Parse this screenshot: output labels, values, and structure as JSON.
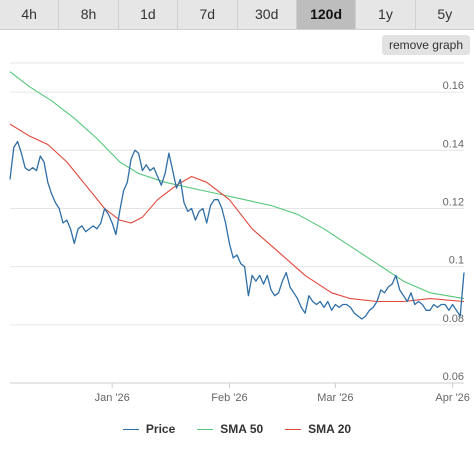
{
  "tabs": [
    {
      "label": "4h",
      "active": false
    },
    {
      "label": "8h",
      "active": false
    },
    {
      "label": "1d",
      "active": false
    },
    {
      "label": "7d",
      "active": false
    },
    {
      "label": "30d",
      "active": false
    },
    {
      "label": "120d",
      "active": true
    },
    {
      "label": "1y",
      "active": false
    },
    {
      "label": "5y",
      "active": false
    }
  ],
  "remove_button": "remove graph",
  "chart_data": {
    "type": "line",
    "title": "",
    "xlabel": "",
    "ylabel": "",
    "ylim": [
      0.06,
      0.17
    ],
    "yticks": [
      0.06,
      0.08,
      0.1,
      0.12,
      0.14,
      0.16
    ],
    "ytick_labels": [
      "0.06",
      "0.08",
      "0.1",
      "0.12",
      "0.14",
      "0.16"
    ],
    "xlim": [
      "2025-12-05",
      "2026-04-04"
    ],
    "xticks": [
      "2026-01-01",
      "2026-02-01",
      "2026-03-01",
      "2026-04-01"
    ],
    "xtick_labels": [
      "Jan '26",
      "Feb '26",
      "Mar '26",
      "Apr '26"
    ],
    "grid": "horizontal",
    "legend_position": "bottom",
    "series": [
      {
        "name": "Price",
        "color": "#2f6fa6",
        "points": [
          [
            "2025-12-05",
            0.13
          ],
          [
            "2025-12-06",
            0.141
          ],
          [
            "2025-12-07",
            0.143
          ],
          [
            "2025-12-08",
            0.139
          ],
          [
            "2025-12-09",
            0.134
          ],
          [
            "2025-12-10",
            0.133
          ],
          [
            "2025-12-11",
            0.134
          ],
          [
            "2025-12-12",
            0.133
          ],
          [
            "2025-12-13",
            0.138
          ],
          [
            "2025-12-14",
            0.136
          ],
          [
            "2025-12-15",
            0.129
          ],
          [
            "2025-12-16",
            0.125
          ],
          [
            "2025-12-17",
            0.122
          ],
          [
            "2025-12-18",
            0.12
          ],
          [
            "2025-12-19",
            0.115
          ],
          [
            "2025-12-20",
            0.116
          ],
          [
            "2025-12-21",
            0.113
          ],
          [
            "2025-12-22",
            0.108
          ],
          [
            "2025-12-23",
            0.113
          ],
          [
            "2025-12-24",
            0.114
          ],
          [
            "2025-12-25",
            0.112
          ],
          [
            "2025-12-26",
            0.113
          ],
          [
            "2025-12-27",
            0.114
          ],
          [
            "2025-12-28",
            0.113
          ],
          [
            "2025-12-29",
            0.115
          ],
          [
            "2025-12-30",
            0.12
          ],
          [
            "2025-12-31",
            0.118
          ],
          [
            "2026-01-01",
            0.115
          ],
          [
            "2026-01-02",
            0.111
          ],
          [
            "2026-01-03",
            0.119
          ],
          [
            "2026-01-04",
            0.126
          ],
          [
            "2026-01-05",
            0.129
          ],
          [
            "2026-01-06",
            0.137
          ],
          [
            "2026-01-07",
            0.14
          ],
          [
            "2026-01-08",
            0.139
          ],
          [
            "2026-01-09",
            0.133
          ],
          [
            "2026-01-10",
            0.135
          ],
          [
            "2026-01-11",
            0.133
          ],
          [
            "2026-01-12",
            0.134
          ],
          [
            "2026-01-13",
            0.131
          ],
          [
            "2026-01-14",
            0.128
          ],
          [
            "2026-01-15",
            0.132
          ],
          [
            "2026-01-16",
            0.139
          ],
          [
            "2026-01-17",
            0.133
          ],
          [
            "2026-01-18",
            0.127
          ],
          [
            "2026-01-19",
            0.13
          ],
          [
            "2026-01-20",
            0.122
          ],
          [
            "2026-01-21",
            0.119
          ],
          [
            "2026-01-22",
            0.12
          ],
          [
            "2026-01-23",
            0.116
          ],
          [
            "2026-01-24",
            0.119
          ],
          [
            "2026-01-25",
            0.12
          ],
          [
            "2026-01-26",
            0.115
          ],
          [
            "2026-01-27",
            0.121
          ],
          [
            "2026-01-28",
            0.123
          ],
          [
            "2026-01-29",
            0.123
          ],
          [
            "2026-01-30",
            0.12
          ],
          [
            "2026-01-31",
            0.115
          ],
          [
            "2026-02-01",
            0.108
          ],
          [
            "2026-02-02",
            0.103
          ],
          [
            "2026-02-03",
            0.104
          ],
          [
            "2026-02-04",
            0.101
          ],
          [
            "2026-02-05",
            0.1
          ],
          [
            "2026-02-06",
            0.09
          ],
          [
            "2026-02-07",
            0.097
          ],
          [
            "2026-02-08",
            0.095
          ],
          [
            "2026-02-09",
            0.097
          ],
          [
            "2026-02-10",
            0.094
          ],
          [
            "2026-02-11",
            0.097
          ],
          [
            "2026-02-12",
            0.092
          ],
          [
            "2026-02-13",
            0.09
          ],
          [
            "2026-02-14",
            0.091
          ],
          [
            "2026-02-15",
            0.095
          ],
          [
            "2026-02-16",
            0.098
          ],
          [
            "2026-02-17",
            0.093
          ],
          [
            "2026-02-18",
            0.091
          ],
          [
            "2026-02-19",
            0.089
          ],
          [
            "2026-02-20",
            0.086
          ],
          [
            "2026-02-21",
            0.084
          ],
          [
            "2026-02-22",
            0.09
          ],
          [
            "2026-02-23",
            0.088
          ],
          [
            "2026-02-24",
            0.087
          ],
          [
            "2026-02-25",
            0.088
          ],
          [
            "2026-02-26",
            0.086
          ],
          [
            "2026-02-27",
            0.088
          ],
          [
            "2026-02-28",
            0.085
          ],
          [
            "2026-03-01",
            0.087
          ],
          [
            "2026-03-02",
            0.086
          ],
          [
            "2026-03-03",
            0.087
          ],
          [
            "2026-03-04",
            0.087
          ],
          [
            "2026-03-05",
            0.086
          ],
          [
            "2026-03-06",
            0.084
          ],
          [
            "2026-03-07",
            0.083
          ],
          [
            "2026-03-08",
            0.082
          ],
          [
            "2026-03-09",
            0.083
          ],
          [
            "2026-03-10",
            0.085
          ],
          [
            "2026-03-11",
            0.086
          ],
          [
            "2026-03-12",
            0.088
          ],
          [
            "2026-03-13",
            0.092
          ],
          [
            "2026-03-14",
            0.091
          ],
          [
            "2026-03-15",
            0.093
          ],
          [
            "2026-03-16",
            0.094
          ],
          [
            "2026-03-17",
            0.097
          ],
          [
            "2026-03-18",
            0.092
          ],
          [
            "2026-03-19",
            0.09
          ],
          [
            "2026-03-20",
            0.088
          ],
          [
            "2026-03-21",
            0.091
          ],
          [
            "2026-03-22",
            0.087
          ],
          [
            "2026-03-23",
            0.088
          ],
          [
            "2026-03-24",
            0.087
          ],
          [
            "2026-03-25",
            0.085
          ],
          [
            "2026-03-26",
            0.085
          ],
          [
            "2026-03-27",
            0.087
          ],
          [
            "2026-03-28",
            0.086
          ],
          [
            "2026-03-29",
            0.087
          ],
          [
            "2026-03-30",
            0.087
          ],
          [
            "2026-03-31",
            0.085
          ],
          [
            "2026-04-01",
            0.087
          ],
          [
            "2026-04-02",
            0.085
          ],
          [
            "2026-04-03",
            0.083
          ],
          [
            "2026-04-04",
            0.098
          ]
        ]
      },
      {
        "name": "SMA 50",
        "color": "#55c77a",
        "points": [
          [
            "2025-12-05",
            0.167
          ],
          [
            "2025-12-10",
            0.162
          ],
          [
            "2025-12-16",
            0.157
          ],
          [
            "2025-12-22",
            0.151
          ],
          [
            "2025-12-28",
            0.144
          ],
          [
            "2026-01-03",
            0.136
          ],
          [
            "2026-01-08",
            0.132
          ],
          [
            "2026-01-15",
            0.129
          ],
          [
            "2026-01-22",
            0.127
          ],
          [
            "2026-01-29",
            0.125
          ],
          [
            "2026-02-05",
            0.123
          ],
          [
            "2026-02-12",
            0.121
          ],
          [
            "2026-02-19",
            0.118
          ],
          [
            "2026-02-26",
            0.113
          ],
          [
            "2026-03-05",
            0.107
          ],
          [
            "2026-03-12",
            0.101
          ],
          [
            "2026-03-19",
            0.095
          ],
          [
            "2026-03-26",
            0.091
          ],
          [
            "2026-04-04",
            0.089
          ]
        ]
      },
      {
        "name": "SMA 20",
        "color": "#e2463a",
        "points": [
          [
            "2025-12-05",
            0.149
          ],
          [
            "2025-12-10",
            0.145
          ],
          [
            "2025-12-15",
            0.142
          ],
          [
            "2025-12-20",
            0.136
          ],
          [
            "2025-12-25",
            0.128
          ],
          [
            "2025-12-30",
            0.12
          ],
          [
            "2026-01-03",
            0.116
          ],
          [
            "2026-01-06",
            0.115
          ],
          [
            "2026-01-09",
            0.117
          ],
          [
            "2026-01-13",
            0.123
          ],
          [
            "2026-01-18",
            0.128
          ],
          [
            "2026-01-22",
            0.131
          ],
          [
            "2026-01-26",
            0.129
          ],
          [
            "2026-02-01",
            0.123
          ],
          [
            "2026-02-07",
            0.113
          ],
          [
            "2026-02-14",
            0.105
          ],
          [
            "2026-02-21",
            0.097
          ],
          [
            "2026-02-28",
            0.091
          ],
          [
            "2026-03-05",
            0.089
          ],
          [
            "2026-03-12",
            0.088
          ],
          [
            "2026-03-19",
            0.088
          ],
          [
            "2026-03-26",
            0.089
          ],
          [
            "2026-04-04",
            0.088
          ]
        ]
      }
    ]
  }
}
